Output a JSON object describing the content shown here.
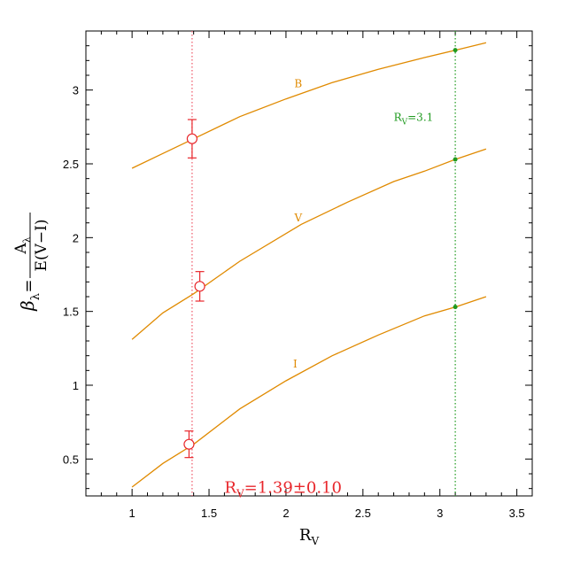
{
  "chart_data": {
    "type": "line",
    "title": "",
    "xlabel": "R",
    "xlabel_sub": "V",
    "ylabel": {
      "prefix": "β",
      "prefix_sub": "λ",
      "equals": "=",
      "numerator": "A",
      "numerator_sub": "λ",
      "denominator": "E(V−I)"
    },
    "xlim": [
      0.7,
      3.6
    ],
    "ylim": [
      0.25,
      3.4
    ],
    "xticks": [
      "1",
      "1.5",
      "2",
      "2.5",
      "3",
      "3.5"
    ],
    "yticks": [
      "0.5",
      "1",
      "1.5",
      "2",
      "2.5",
      "3"
    ],
    "grid": false,
    "series": [
      {
        "name": "B",
        "color": "#e08a00",
        "x": [
          1.0,
          1.2,
          1.4,
          1.7,
          2.0,
          2.3,
          2.6,
          2.9,
          3.1,
          3.3
        ],
        "y": [
          2.47,
          2.57,
          2.67,
          2.82,
          2.94,
          3.05,
          3.14,
          3.22,
          3.27,
          3.32
        ]
      },
      {
        "name": "V",
        "color": "#e08a00",
        "x": [
          1.0,
          1.2,
          1.4,
          1.7,
          2.1,
          2.4,
          2.7,
          2.9,
          3.1,
          3.3
        ],
        "y": [
          1.31,
          1.49,
          1.62,
          1.84,
          2.09,
          2.24,
          2.38,
          2.45,
          2.53,
          2.6
        ]
      },
      {
        "name": "I",
        "color": "#e08a00",
        "x": [
          1.0,
          1.2,
          1.4,
          1.7,
          2.0,
          2.3,
          2.6,
          2.9,
          3.1,
          3.3
        ],
        "y": [
          0.31,
          0.47,
          0.6,
          0.84,
          1.03,
          1.2,
          1.34,
          1.47,
          1.53,
          1.6
        ]
      }
    ],
    "measured_points": {
      "color": "#e8272c",
      "points": [
        {
          "band": "B",
          "x": 1.39,
          "y": 2.67,
          "err": 0.13
        },
        {
          "band": "V",
          "x": 1.44,
          "y": 1.67,
          "err": 0.1
        },
        {
          "band": "I",
          "x": 1.37,
          "y": 0.6,
          "err": 0.09
        }
      ]
    },
    "reference_points": {
      "color": "#1f9a1f",
      "points": [
        {
          "x": 3.1,
          "y": 3.27
        },
        {
          "x": 3.1,
          "y": 2.53
        },
        {
          "x": 3.1,
          "y": 1.53
        }
      ]
    },
    "vertical_lines": [
      {
        "x": 1.39,
        "color": "#f06070",
        "style": "dotted"
      },
      {
        "x": 3.1,
        "color": "#2aa02a",
        "style": "dotted"
      }
    ],
    "annotations": [
      {
        "id": "label-b",
        "text": "B",
        "x": 2.08,
        "y": 3.02,
        "color": "#e08a00"
      },
      {
        "id": "label-v",
        "text": "V",
        "x": 2.08,
        "y": 2.11,
        "color": "#e08a00"
      },
      {
        "id": "label-i",
        "text": "I",
        "x": 2.06,
        "y": 1.12,
        "color": "#e08a00"
      },
      {
        "id": "rv-ref",
        "text": "=3.1",
        "main": "R",
        "sub": "V",
        "x": 2.7,
        "y": 2.79,
        "color": "#1f9a1f"
      },
      {
        "id": "rv-fit",
        "text": "=1.39±0.10",
        "main": "R",
        "sub": "V",
        "x": 1.6,
        "y": 0.27,
        "color": "#e8272c"
      }
    ]
  }
}
